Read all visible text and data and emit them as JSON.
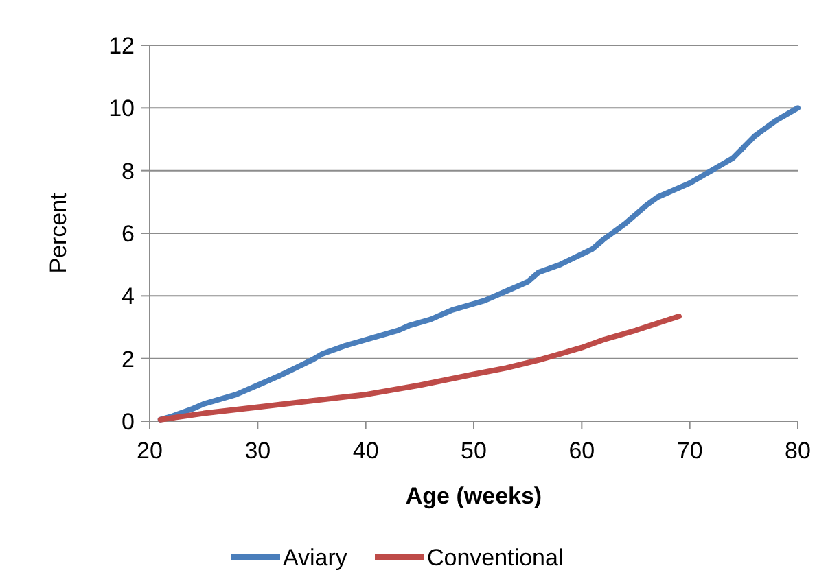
{
  "chart_data": {
    "type": "line",
    "xlabel": "Age (weeks)",
    "ylabel": "Percent",
    "xlim": [
      20,
      80
    ],
    "xticks": [
      20,
      30,
      40,
      50,
      60,
      70,
      80
    ],
    "ylim": [
      0,
      12
    ],
    "yticks": [
      0,
      2,
      4,
      6,
      8,
      10,
      12
    ],
    "grid": "y",
    "legend": "bottom",
    "marker": "none",
    "line_style": "solid",
    "series": [
      {
        "name": "Aviary",
        "color": "#4a7ebb",
        "x": [
          21,
          22,
          24,
          25,
          28,
          30,
          32,
          35,
          36,
          38,
          40,
          43,
          44,
          46,
          48,
          50,
          51,
          53,
          55,
          56,
          58,
          61,
          62,
          64,
          66,
          67,
          70,
          72,
          74,
          76,
          78,
          80
        ],
        "values": [
          0.05,
          0.15,
          0.4,
          0.55,
          0.85,
          1.15,
          1.45,
          1.95,
          2.15,
          2.4,
          2.6,
          2.9,
          3.05,
          3.25,
          3.55,
          3.75,
          3.85,
          4.15,
          4.45,
          4.75,
          5.0,
          5.5,
          5.8,
          6.3,
          6.9,
          7.15,
          7.6,
          8.0,
          8.4,
          9.1,
          9.6,
          10.0
        ]
      },
      {
        "name": "Conventional",
        "color": "#be4b48",
        "x": [
          21,
          25,
          30,
          35,
          40,
          45,
          50,
          53,
          56,
          58,
          60,
          62,
          65,
          69
        ],
        "values": [
          0.05,
          0.25,
          0.45,
          0.65,
          0.85,
          1.15,
          1.5,
          1.7,
          1.95,
          2.15,
          2.35,
          2.6,
          2.9,
          3.35
        ]
      }
    ]
  }
}
